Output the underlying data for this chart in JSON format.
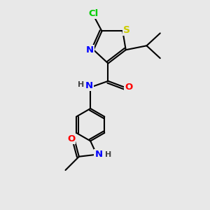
{
  "background_color": "#e8e8e8",
  "atom_colors": {
    "C": "#000000",
    "N": "#0000ff",
    "O": "#ff0000",
    "S": "#cccc00",
    "Cl": "#00cc00",
    "H": "#444444"
  },
  "bond_color": "#000000",
  "bond_width": 1.5,
  "font_size": 8.5,
  "fig_size": [
    3.0,
    3.0
  ],
  "dpi": 100
}
